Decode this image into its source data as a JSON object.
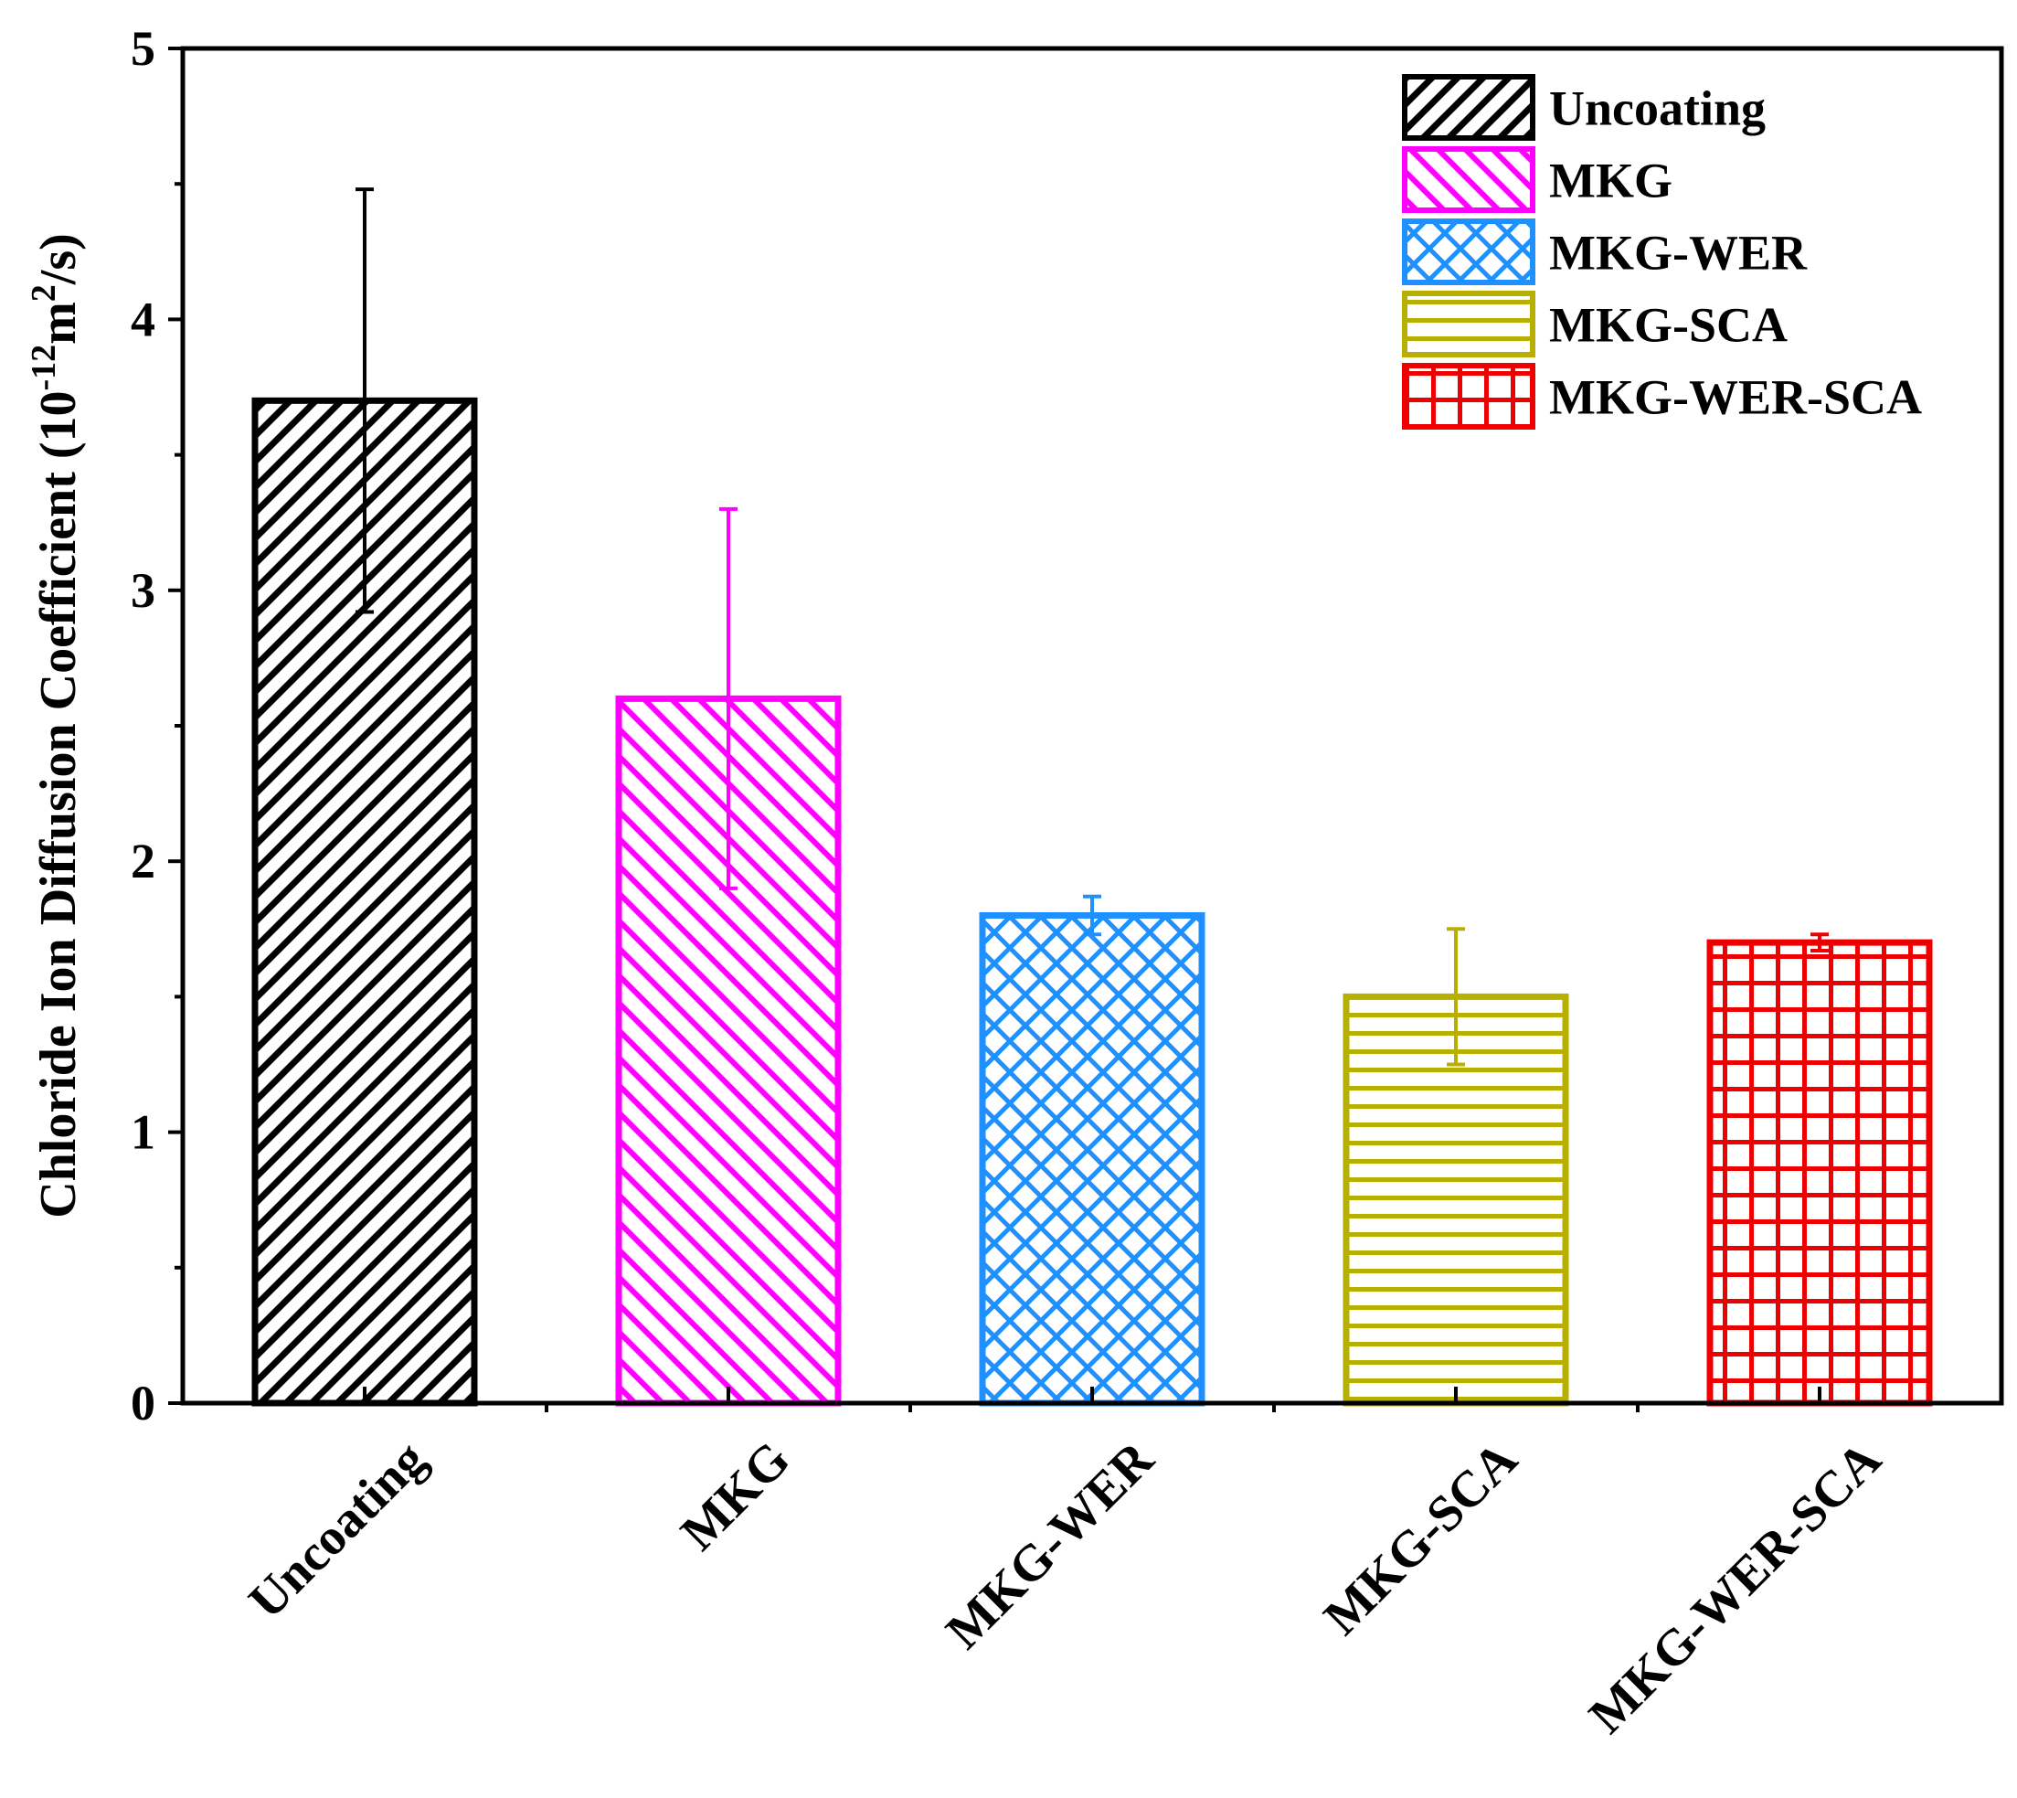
{
  "chart_data": {
    "type": "bar",
    "title": "",
    "xlabel": "",
    "ylabel": "Chloride Ion Diffusion Coefficient (10",
    "ylabel_sup": "-12",
    "ylabel_mid": "m",
    "ylabel_sup2": "2",
    "ylabel_end": "/s)",
    "ylim": [
      0,
      5
    ],
    "yticks": [
      "0",
      "1",
      "2",
      "3",
      "4",
      "5"
    ],
    "categories": [
      "Uncoating",
      "MKG",
      "MKG-WER",
      "MKG-SCA",
      "MKG-WER-SCA"
    ],
    "values": [
      3.7,
      2.6,
      1.8,
      1.5,
      1.7
    ],
    "errors": [
      0.78,
      0.7,
      0.07,
      0.25,
      0.03
    ],
    "colors": [
      "#000000",
      "#ff00ff",
      "#1e90ff",
      "#b8b000",
      "#ee0000"
    ],
    "patterns": [
      "diag-up",
      "diag-down",
      "crosshatch",
      "horizontal",
      "grid"
    ],
    "legend": {
      "position": "top-right",
      "entries": [
        "Uncoating",
        "MKG",
        "MKG-WER",
        "MKG-SCA",
        "MKG-WER-SCA"
      ]
    },
    "grid": false
  }
}
